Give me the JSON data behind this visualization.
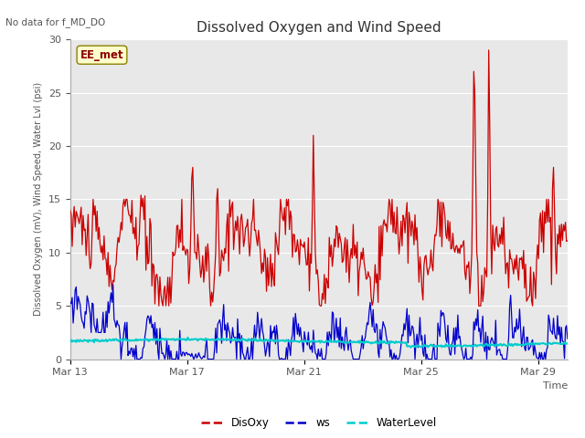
{
  "title": "Dissolved Oxygen and Wind Speed",
  "ylabel": "Dissolved Oxygen (mV), Wind Speed, Water Lvl (psi)",
  "xlabel": "Time",
  "no_data_label": "No data for f_MD_DO",
  "station_label": "EE_met",
  "ylim": [
    0,
    30
  ],
  "yticks": [
    0,
    5,
    10,
    15,
    20,
    25,
    30
  ],
  "x_tick_labels": [
    "Mar 13",
    "Mar 17",
    "Mar 21",
    "Mar 25",
    "Mar 29"
  ],
  "x_tick_positions": [
    0,
    4,
    8,
    12,
    16
  ],
  "legend_labels": [
    "DisOxy",
    "ws",
    "WaterLevel"
  ],
  "legend_colors": [
    "#cc0000",
    "#0000cc",
    "#00cccc"
  ],
  "line_colors": {
    "DisOxy": "#cc0000",
    "ws": "#0000cc",
    "WaterLevel": "#00cccc"
  },
  "plot_bg_color": "#e8e8e8",
  "fig_bg_color": "#ffffff",
  "grid_color": "#ffffff",
  "figsize": [
    6.4,
    4.8
  ],
  "dpi": 100,
  "xlim": [
    0,
    17
  ]
}
